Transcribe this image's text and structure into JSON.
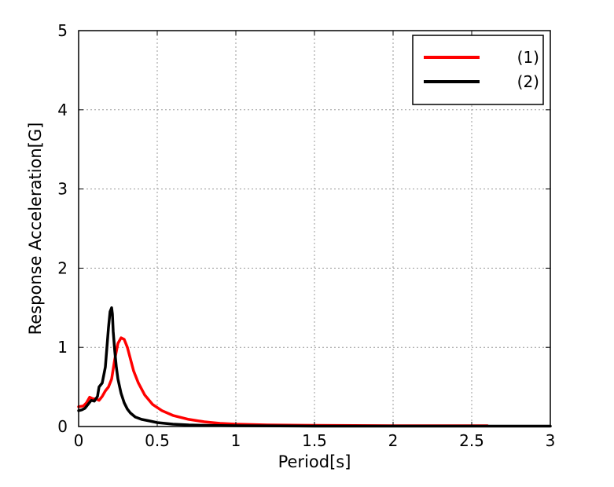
{
  "chart_data": {
    "type": "line",
    "title": "",
    "xlabel": "Period[s]",
    "ylabel": "Response Acceleration[G]",
    "xlim": [
      0,
      3
    ],
    "ylim": [
      0,
      5
    ],
    "xticks": [
      0,
      0.5,
      1,
      1.5,
      2,
      2.5,
      3
    ],
    "xtick_labels": [
      "0",
      "0.5",
      "1",
      "1.5",
      "2",
      "2.5",
      "3"
    ],
    "yticks": [
      0,
      1,
      2,
      3,
      4,
      5
    ],
    "ytick_labels": [
      "0",
      "1",
      "2",
      "3",
      "4",
      "5"
    ],
    "grid": true,
    "legend_position": "top-right",
    "series": [
      {
        "name": "(1)",
        "color": "#ff0000",
        "x": [
          0,
          0.03,
          0.05,
          0.07,
          0.09,
          0.11,
          0.13,
          0.15,
          0.17,
          0.19,
          0.21,
          0.23,
          0.25,
          0.27,
          0.29,
          0.31,
          0.33,
          0.35,
          0.38,
          0.42,
          0.47,
          0.53,
          0.6,
          0.7,
          0.8,
          0.9,
          1.0,
          1.2,
          1.5,
          2.0,
          2.5,
          2.6
        ],
        "y": [
          0.25,
          0.26,
          0.3,
          0.37,
          0.35,
          0.35,
          0.33,
          0.38,
          0.45,
          0.5,
          0.6,
          0.85,
          1.05,
          1.12,
          1.1,
          1.0,
          0.85,
          0.7,
          0.55,
          0.4,
          0.28,
          0.2,
          0.14,
          0.09,
          0.06,
          0.04,
          0.03,
          0.02,
          0.015,
          0.01,
          0.01,
          0.01
        ]
      },
      {
        "name": "(2)",
        "color": "#000000",
        "x": [
          0,
          0.02,
          0.04,
          0.06,
          0.08,
          0.1,
          0.12,
          0.13,
          0.15,
          0.17,
          0.18,
          0.19,
          0.2,
          0.21,
          0.215,
          0.22,
          0.23,
          0.24,
          0.25,
          0.27,
          0.29,
          0.31,
          0.33,
          0.36,
          0.4,
          0.45,
          0.5,
          0.6,
          0.7,
          0.8,
          1.0,
          1.5,
          2.0,
          2.5,
          3.0
        ],
        "y": [
          0.2,
          0.21,
          0.23,
          0.28,
          0.33,
          0.32,
          0.38,
          0.5,
          0.55,
          0.75,
          1.0,
          1.25,
          1.45,
          1.5,
          1.42,
          1.2,
          0.95,
          0.75,
          0.6,
          0.42,
          0.3,
          0.22,
          0.17,
          0.12,
          0.09,
          0.07,
          0.05,
          0.03,
          0.02,
          0.015,
          0.01,
          0.005,
          0.005,
          0.005,
          0.005
        ]
      }
    ]
  }
}
